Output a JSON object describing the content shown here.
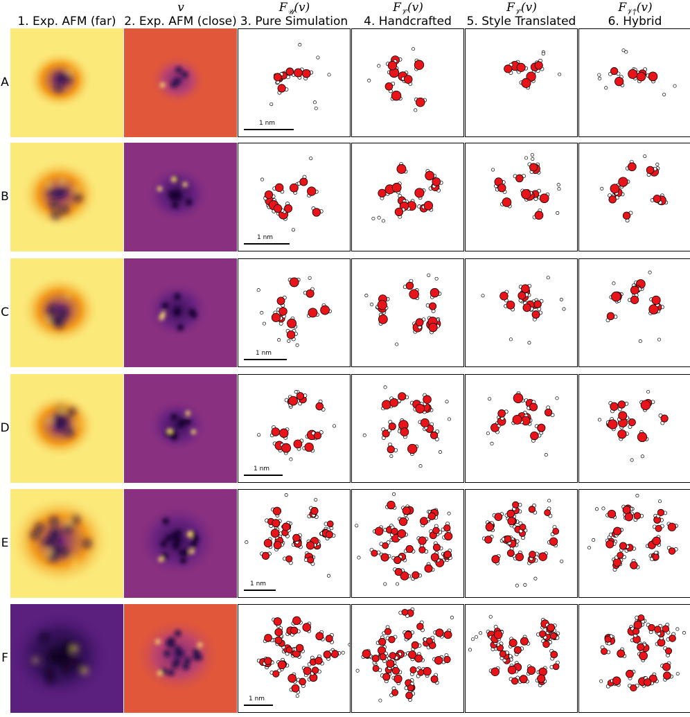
{
  "figure": {
    "math_headers": [
      {
        "col": 1,
        "base": "v",
        "sub": ""
      },
      {
        "col": 2,
        "base": "F",
        "sub": "𝒰",
        "arg": "(v)"
      },
      {
        "col": 3,
        "base": "F",
        "sub": "𝒱̃",
        "arg": "(v)"
      },
      {
        "col": 4,
        "base": "F",
        "sub": "𝒱̃",
        "arg": "(v)"
      },
      {
        "col": 5,
        "base": "F",
        "sub": "𝒱†",
        "arg": "(v)"
      }
    ],
    "column_headers": [
      "1. Exp. AFM (far)",
      "2. Exp. AFM (close)",
      "3. Pure Simulation",
      "4. Handcrafted",
      "5. Style Translated",
      "6. Hybrid"
    ],
    "rows": [
      "A",
      "B",
      "C",
      "D",
      "E",
      "F"
    ],
    "scale_label": "1 nm",
    "colors": {
      "oxygen": "#e8141a",
      "hydrogen": "#ffffff",
      "outline": "#000000",
      "afm_far_bright": "#fbe97a",
      "afm_far_mid": "#f29a1c",
      "afm_close_bg": "#e0573a",
      "afm_dark": "#2a0a4a",
      "afm_purple": "#7b2a7a"
    }
  }
}
